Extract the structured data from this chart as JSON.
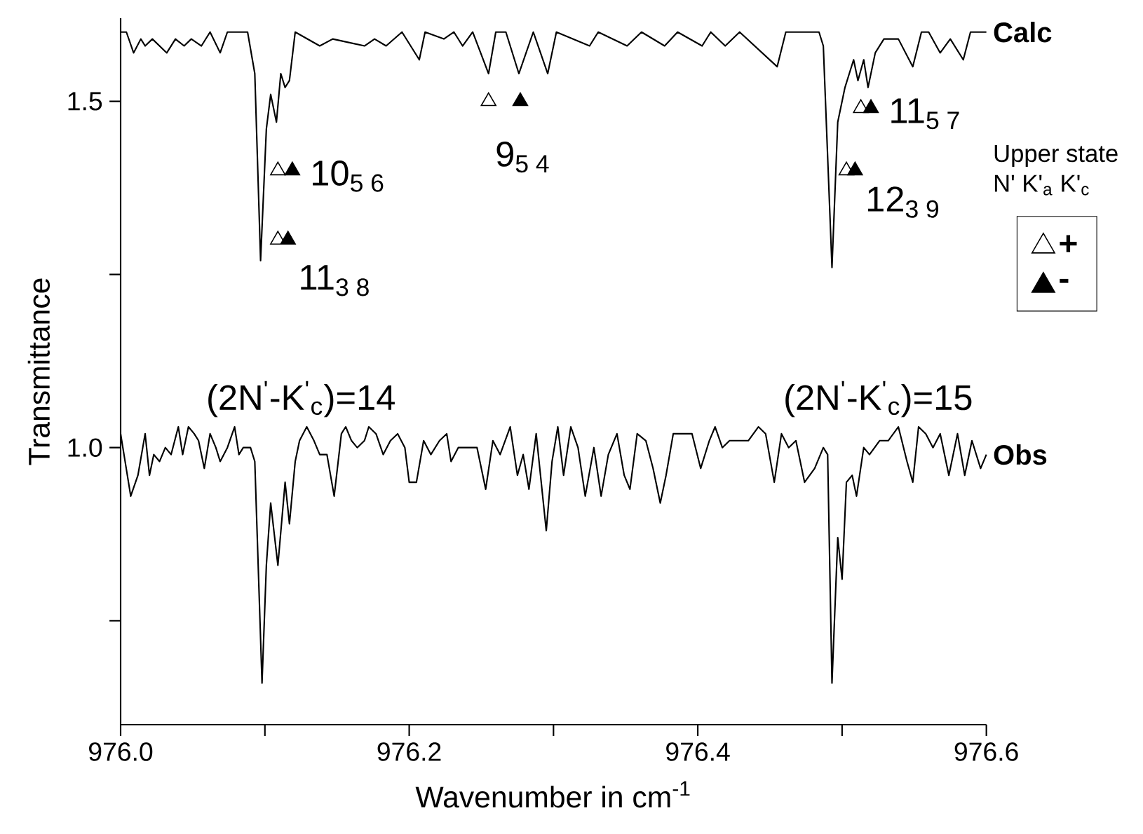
{
  "chart_data": {
    "type": "line",
    "xlabel": "Wavenumber in cm$^{-1}$",
    "ylabel": "Transmittance",
    "legend_title": "Upper state N' K'$_{a}$ K'$_{c}$",
    "xlim": [
      976.0,
      976.6
    ],
    "ylim": [
      0.6,
      1.62
    ],
    "xticks": [
      {
        "value": 976.0,
        "label": "976.0"
      },
      {
        "value": 976.1,
        "label": null
      },
      {
        "value": 976.2,
        "label": "976.2"
      },
      {
        "value": 976.3,
        "label": null
      },
      {
        "value": 976.4,
        "label": "976.4"
      },
      {
        "value": 976.5,
        "label": null
      },
      {
        "value": 976.6,
        "label": "976.6"
      }
    ],
    "yticks": [
      {
        "value": 0.75,
        "label": null
      },
      {
        "value": 1.0,
        "label": "1.0"
      },
      {
        "value": 1.25,
        "label": null
      },
      {
        "value": 1.5,
        "label": "1.5"
      }
    ],
    "legend": "right",
    "series": [
      {
        "name": "Calc",
        "color": "#000000",
        "x": [
          976.0,
          976.004,
          976.009,
          976.014,
          976.017,
          976.022,
          976.032,
          976.038,
          976.044,
          976.049,
          976.056,
          976.062,
          976.069,
          976.074,
          976.088,
          976.093,
          976.097,
          976.101,
          976.104,
          976.108,
          976.111,
          976.114,
          976.117,
          976.121,
          976.138,
          976.147,
          976.169,
          976.176,
          976.184,
          976.195,
          976.207,
          976.211,
          976.224,
          976.231,
          976.237,
          976.244,
          976.255,
          976.26,
          976.267,
          976.276,
          976.286,
          976.296,
          976.302,
          976.325,
          976.331,
          976.351,
          976.361,
          976.377,
          976.386,
          976.403,
          976.409,
          976.419,
          976.429,
          976.455,
          976.461,
          976.484,
          976.487,
          976.493,
          976.497,
          976.502,
          976.505,
          976.508,
          976.511,
          976.515,
          976.518,
          976.523,
          976.529,
          976.539,
          976.549,
          976.555,
          976.56,
          976.568,
          976.575,
          976.584,
          976.589,
          976.6
        ],
        "values": [
          1.6,
          1.6,
          1.57,
          1.59,
          1.58,
          1.59,
          1.57,
          1.59,
          1.58,
          1.59,
          1.58,
          1.6,
          1.57,
          1.6,
          1.6,
          1.54,
          1.27,
          1.46,
          1.51,
          1.47,
          1.54,
          1.52,
          1.53,
          1.6,
          1.58,
          1.59,
          1.58,
          1.59,
          1.58,
          1.6,
          1.56,
          1.6,
          1.59,
          1.6,
          1.58,
          1.6,
          1.54,
          1.6,
          1.6,
          1.54,
          1.6,
          1.54,
          1.6,
          1.58,
          1.6,
          1.58,
          1.6,
          1.58,
          1.6,
          1.58,
          1.6,
          1.58,
          1.6,
          1.55,
          1.6,
          1.6,
          1.58,
          1.26,
          1.47,
          1.52,
          1.54,
          1.56,
          1.53,
          1.56,
          1.52,
          1.57,
          1.59,
          1.59,
          1.55,
          1.6,
          1.6,
          1.57,
          1.59,
          1.56,
          1.6,
          1.6
        ]
      },
      {
        "name": "Obs",
        "color": "#000000",
        "x": [
          976.0,
          976.007,
          976.012,
          976.017,
          976.02,
          976.023,
          976.027,
          976.031,
          976.035,
          976.04,
          976.043,
          976.047,
          976.051,
          976.054,
          976.058,
          976.062,
          976.066,
          976.069,
          976.074,
          976.079,
          976.082,
          976.085,
          976.09,
          976.093,
          976.098,
          976.101,
          976.104,
          976.109,
          976.114,
          976.117,
          976.121,
          976.124,
          976.129,
          976.134,
          976.138,
          976.143,
          976.148,
          976.153,
          976.156,
          976.16,
          976.164,
          976.169,
          976.172,
          976.177,
          976.182,
          976.187,
          976.192,
          976.197,
          976.2,
          976.205,
          976.21,
          976.215,
          976.221,
          976.226,
          976.229,
          976.234,
          976.241,
          976.247,
          976.253,
          976.258,
          976.263,
          976.27,
          976.275,
          976.279,
          976.283,
          976.288,
          976.295,
          976.299,
          976.303,
          976.307,
          976.312,
          976.317,
          976.322,
          976.328,
          976.333,
          976.338,
          976.344,
          976.349,
          976.353,
          976.358,
          976.364,
          976.369,
          976.374,
          976.378,
          976.383,
          976.39,
          976.396,
          976.402,
          976.408,
          976.412,
          976.417,
          976.422,
          976.429,
          976.435,
          976.442,
          976.447,
          976.453,
          976.458,
          976.463,
          976.468,
          976.474,
          976.481,
          976.487,
          976.49,
          976.493,
          976.497,
          976.5,
          976.503,
          976.507,
          976.51,
          976.515,
          976.519,
          976.526,
          976.532,
          976.539,
          976.545,
          976.549,
          976.553,
          976.558,
          976.563,
          976.568,
          976.574,
          976.58,
          976.585,
          976.59,
          976.596,
          976.6
        ],
        "values": [
          1.02,
          0.93,
          0.96,
          1.02,
          0.96,
          0.99,
          0.98,
          1.0,
          0.99,
          1.03,
          0.99,
          1.03,
          1.02,
          1.01,
          0.97,
          1.02,
          1.0,
          0.98,
          1.0,
          1.03,
          0.99,
          1.0,
          1.0,
          0.98,
          0.66,
          0.83,
          0.92,
          0.83,
          0.95,
          0.89,
          0.98,
          1.01,
          1.03,
          1.01,
          0.99,
          0.99,
          0.93,
          1.02,
          1.03,
          1.01,
          1.0,
          1.01,
          1.03,
          1.02,
          0.99,
          1.01,
          1.02,
          1.0,
          0.95,
          0.95,
          1.01,
          0.99,
          1.01,
          1.02,
          0.98,
          1.0,
          1.0,
          1.0,
          0.94,
          1.01,
          0.99,
          1.03,
          0.96,
          0.99,
          0.94,
          1.02,
          0.88,
          0.98,
          1.03,
          0.96,
          1.03,
          1.0,
          0.93,
          1.0,
          0.93,
          0.99,
          1.02,
          0.96,
          0.94,
          1.02,
          1.01,
          0.97,
          0.92,
          0.96,
          1.02,
          1.02,
          1.02,
          0.97,
          1.01,
          1.03,
          1.0,
          1.01,
          1.01,
          1.01,
          1.03,
          1.02,
          0.95,
          1.02,
          1.0,
          1.01,
          0.95,
          0.97,
          1.0,
          0.99,
          0.66,
          0.87,
          0.81,
          0.95,
          0.96,
          0.93,
          1.0,
          0.99,
          1.01,
          1.01,
          1.03,
          0.98,
          0.95,
          1.03,
          1.02,
          1.0,
          1.02,
          0.96,
          1.02,
          0.96,
          1.01,
          0.97,
          0.99
        ]
      },
      {
        "name": "+",
        "type": "scatter",
        "marker": "triangle",
        "color": "#ffffff",
        "x": [
          976.109,
          976.109,
          976.255,
          976.513,
          976.503
        ],
        "values": [
          1.4,
          1.3,
          1.5,
          1.49,
          1.4
        ]
      },
      {
        "name": "-",
        "type": "scatter",
        "marker": "triangle",
        "color": "#000000",
        "x": [
          976.119,
          976.116,
          976.277,
          976.52,
          976.509
        ],
        "values": [
          1.4,
          1.3,
          1.5,
          1.49,
          1.4
        ]
      }
    ],
    "annotations": [
      {
        "text": "10$_{5 6}$",
        "x": 976.119,
        "y": 1.4
      },
      {
        "text": "11$_{3 8}$",
        "x": 976.116,
        "y": 1.3
      },
      {
        "text": "9$_{5 4}$",
        "x": 976.255,
        "y": 1.5
      },
      {
        "text": "11$_{5 7}$",
        "x": 976.52,
        "y": 1.49
      },
      {
        "text": "12$_{3 9}$",
        "x": 976.509,
        "y": 1.4
      },
      "(2N$^{'}$-K$^{'}$$_{c}$)=14",
      "(2N$^{'}$-K$^{'}$$_{c}$)=15"
    ]
  }
}
